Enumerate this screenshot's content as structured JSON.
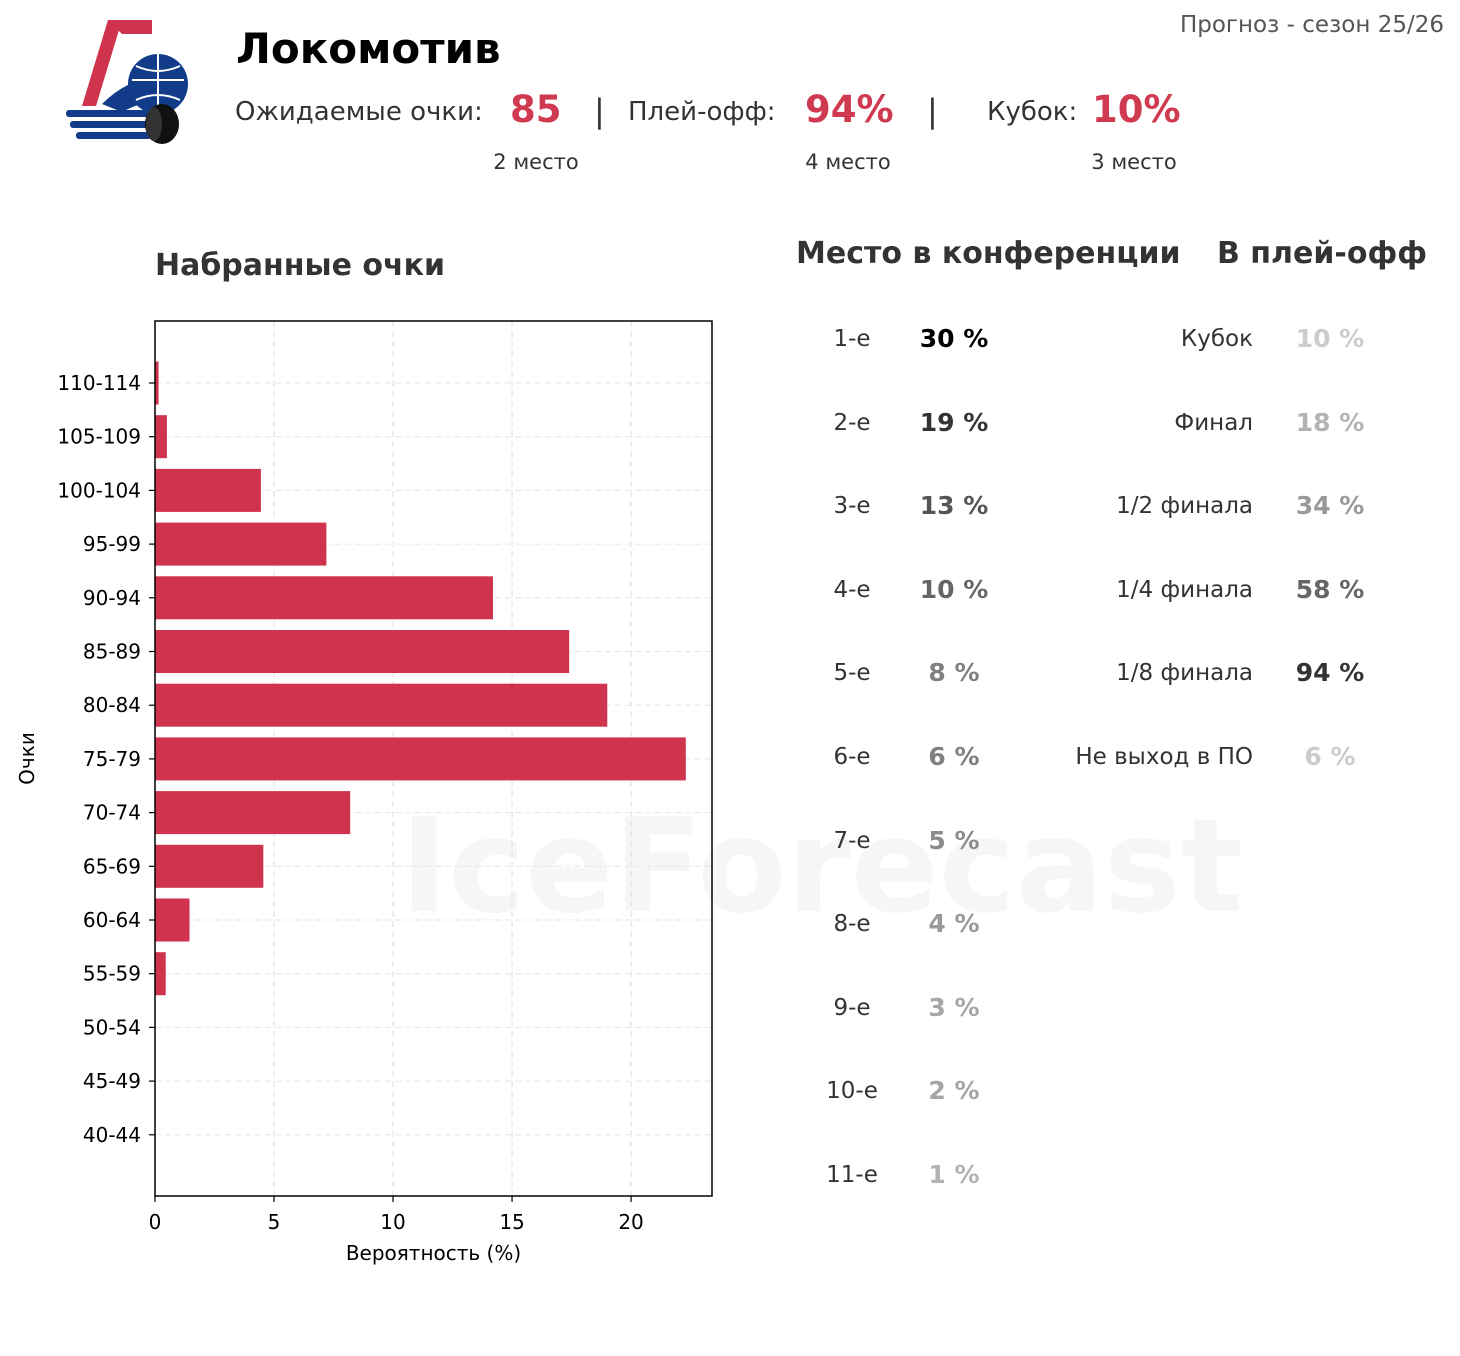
{
  "header": {
    "season": "Прогноз - сезон 25/26",
    "team": "Локомотив",
    "expected_points": {
      "label": "Ожидаемые очки:",
      "value": "85",
      "rank": "2 место"
    },
    "playoff": {
      "label": "Плей-офф:",
      "value": "94%",
      "rank": "4 место"
    },
    "cup": {
      "label": "Кубок:",
      "value": "10%",
      "rank": "3 место"
    },
    "separator": "|"
  },
  "watermark": "IceForecast",
  "conference": {
    "title": "Место в конференции",
    "rows": [
      {
        "place": "1-е",
        "value": "30 %",
        "color": "#000000"
      },
      {
        "place": "2-е",
        "value": "19 %",
        "color": "#333333"
      },
      {
        "place": "3-е",
        "value": "13 %",
        "color": "#555555"
      },
      {
        "place": "4-е",
        "value": "10 %",
        "color": "#666666"
      },
      {
        "place": "5-е",
        "value": "8 %",
        "color": "#808080"
      },
      {
        "place": "6-е",
        "value": "6 %",
        "color": "#808080"
      },
      {
        "place": "7-е",
        "value": "5 %",
        "color": "#8c8c8c"
      },
      {
        "place": "8-е",
        "value": "4 %",
        "color": "#999999"
      },
      {
        "place": "9-е",
        "value": "3 %",
        "color": "#a6a6a6"
      },
      {
        "place": "10-е",
        "value": "2 %",
        "color": "#a6a6a6"
      },
      {
        "place": "11-е",
        "value": "1 %",
        "color": "#b3b3b3"
      }
    ]
  },
  "playoffs": {
    "title": "В плей-офф",
    "rows": [
      {
        "stage": "Кубок",
        "value": "10 %",
        "color": "#cccccc"
      },
      {
        "stage": "Финал",
        "value": "18 %",
        "color": "#b3b3b3"
      },
      {
        "stage": "1/2 финала",
        "value": "34 %",
        "color": "#999999"
      },
      {
        "stage": "1/4 финала",
        "value": "58 %",
        "color": "#666666"
      },
      {
        "stage": "1/8 финала",
        "value": "94 %",
        "color": "#333333"
      },
      {
        "stage": "Не выход в ПО",
        "value": "6 %",
        "color": "#cccccc"
      }
    ]
  },
  "chart_data": {
    "type": "bar",
    "orientation": "horizontal",
    "title": "Набранные очки",
    "xlabel": "Вероятность (%)",
    "ylabel": "Очки",
    "categories": [
      "110-114",
      "105-109",
      "100-104",
      "95-99",
      "90-94",
      "85-89",
      "80-84",
      "75-79",
      "70-74",
      "65-69",
      "60-64",
      "55-59",
      "50-54",
      "45-49",
      "40-44"
    ],
    "values": [
      0.15,
      0.5,
      4.45,
      7.2,
      14.2,
      17.4,
      19.0,
      22.3,
      8.2,
      4.55,
      1.45,
      0.45,
      0,
      0,
      0
    ],
    "xlim": [
      0,
      23.4
    ],
    "xticks": [
      0,
      5,
      10,
      15,
      20
    ],
    "grid": true,
    "bar_color": "#d0334e"
  }
}
